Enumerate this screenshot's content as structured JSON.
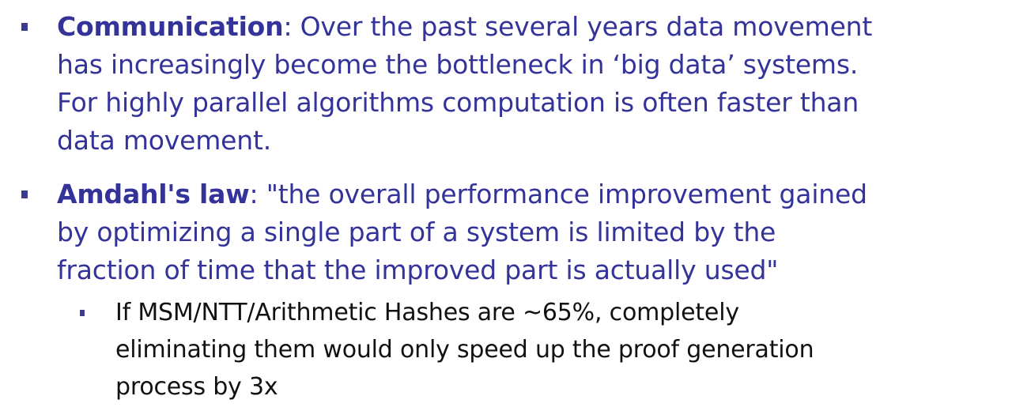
{
  "bullets": [
    {
      "term": "Communication",
      "lines": [
        ": Over the past several years data movement",
        "has increasingly become the bottleneck in ‘big data’ systems.",
        "For highly parallel algorithms computation is often faster than",
        "data movement."
      ]
    },
    {
      "term": "Amdahl's law",
      "lines": [
        ": \"the overall performance improvement gained",
        "by optimizing a single part of a system is limited by the",
        "fraction of time that the improved part is actually used\""
      ]
    }
  ],
  "sub_bullet": {
    "lines": [
      "If MSM/NTT/Arithmetic Hashes are ~65%, completely",
      "eliminating them would only speed up the proof generation",
      "process by 3x"
    ]
  },
  "colors": {
    "text_primary": "#333399",
    "text_secondary": "#111111",
    "bullet_marker": "#3b3b94"
  }
}
